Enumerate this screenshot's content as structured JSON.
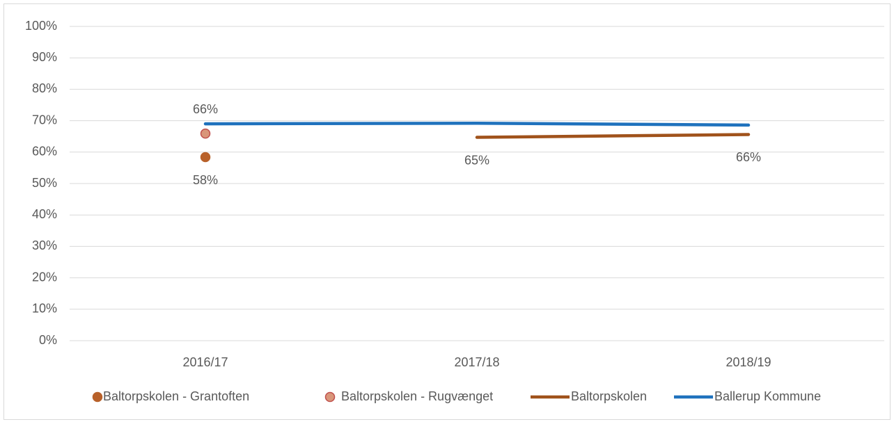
{
  "chart_data": {
    "type": "line",
    "categories": [
      "2016/17",
      "2017/18",
      "2018/19"
    ],
    "series": [
      {
        "name": "Baltorpskolen - Grantoften",
        "style": "marker",
        "color": "#b8612a",
        "values": [
          58.4,
          null,
          null
        ],
        "value_labels": [
          "58%",
          null,
          null
        ],
        "label_position": "below"
      },
      {
        "name": "Baltorpskolen - Rugvænget",
        "style": "marker",
        "color": "#d9967a",
        "values": [
          65.9,
          null,
          null
        ],
        "value_labels": [
          "66%",
          null,
          null
        ],
        "label_position": "above"
      },
      {
        "name": "Baltorpskolen",
        "style": "line",
        "color": "#a0521b",
        "values": [
          null,
          64.7,
          65.6
        ],
        "value_labels": [
          null,
          "65%",
          "66%"
        ],
        "label_position": "below"
      },
      {
        "name": "Ballerup Kommune",
        "style": "line",
        "color": "#1f72bd",
        "values": [
          69.0,
          69.2,
          68.6
        ]
      }
    ],
    "ylim": [
      0,
      100
    ],
    "yticks": [
      {
        "value": 0,
        "label": "0%"
      },
      {
        "value": 10,
        "label": "10%"
      },
      {
        "value": 20,
        "label": "20%"
      },
      {
        "value": 30,
        "label": "30%"
      },
      {
        "value": 40,
        "label": "40%"
      },
      {
        "value": 50,
        "label": "50%"
      },
      {
        "value": 60,
        "label": "60%"
      },
      {
        "value": 70,
        "label": "70%"
      },
      {
        "value": 80,
        "label": "80%"
      },
      {
        "value": 90,
        "label": "90%"
      },
      {
        "value": 100,
        "label": "100%"
      }
    ],
    "grid": true,
    "legend": "bottom"
  }
}
